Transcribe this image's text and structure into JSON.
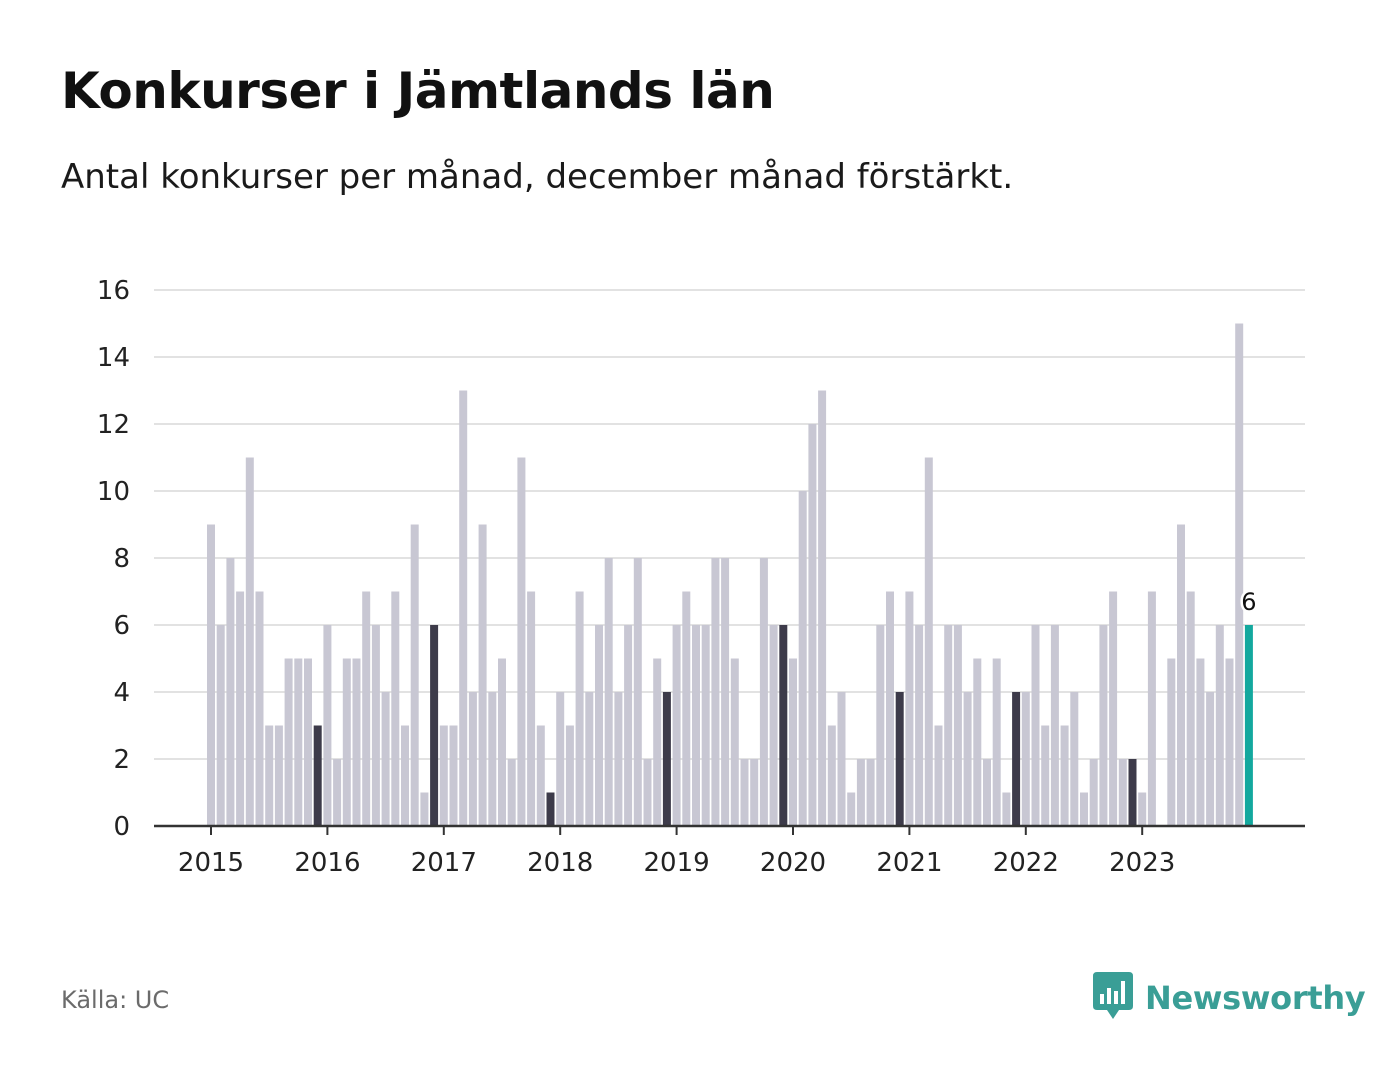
{
  "header": {
    "title": "Konkurser i Jämtlands län",
    "subtitle": "Antal konkurser per månad, december månad förstärkt."
  },
  "footer": {
    "source": "Källa: UC",
    "brand": "Newsworthy"
  },
  "colors": {
    "bar_default": "#c8c7d3",
    "bar_december": "#3d3b4a",
    "bar_latest": "#13a89e",
    "grid": "#e2e2e2",
    "axis": "#333333",
    "brand": "#3a9e96"
  },
  "icons": {
    "brand_logo": "bar-chart-speech-bubble-icon"
  },
  "chart_data": {
    "type": "bar",
    "title": "Konkurser i Jämtlands län",
    "subtitle": "Antal konkurser per månad, december månad förstärkt.",
    "xlabel": "",
    "ylabel": "",
    "ylim": [
      0,
      16
    ],
    "yticks": [
      0,
      2,
      4,
      6,
      8,
      10,
      12,
      14,
      16
    ],
    "xtick_labels": [
      "2015",
      "2016",
      "2017",
      "2018",
      "2019",
      "2020",
      "2021",
      "2022",
      "2023"
    ],
    "grid": true,
    "legend": "none",
    "start": "2015-01",
    "end": "2023-12",
    "highlight": "december",
    "latest_label": "6",
    "values": [
      9,
      6,
      8,
      7,
      11,
      7,
      3,
      3,
      5,
      5,
      5,
      3,
      6,
      2,
      5,
      5,
      7,
      6,
      4,
      7,
      3,
      9,
      1,
      6,
      3,
      3,
      13,
      4,
      9,
      4,
      5,
      2,
      11,
      7,
      3,
      1,
      4,
      3,
      7,
      4,
      6,
      8,
      4,
      6,
      8,
      2,
      5,
      4,
      6,
      7,
      6,
      6,
      8,
      8,
      5,
      2,
      2,
      8,
      6,
      6,
      5,
      10,
      12,
      13,
      3,
      4,
      1,
      2,
      2,
      6,
      7,
      4,
      7,
      6,
      11,
      3,
      6,
      6,
      4,
      5,
      2,
      5,
      1,
      4,
      4,
      6,
      3,
      6,
      3,
      4,
      1,
      2,
      6,
      7,
      2,
      2,
      1,
      7,
      0,
      5,
      9,
      7,
      5,
      4,
      6,
      5,
      15,
      6
    ]
  }
}
